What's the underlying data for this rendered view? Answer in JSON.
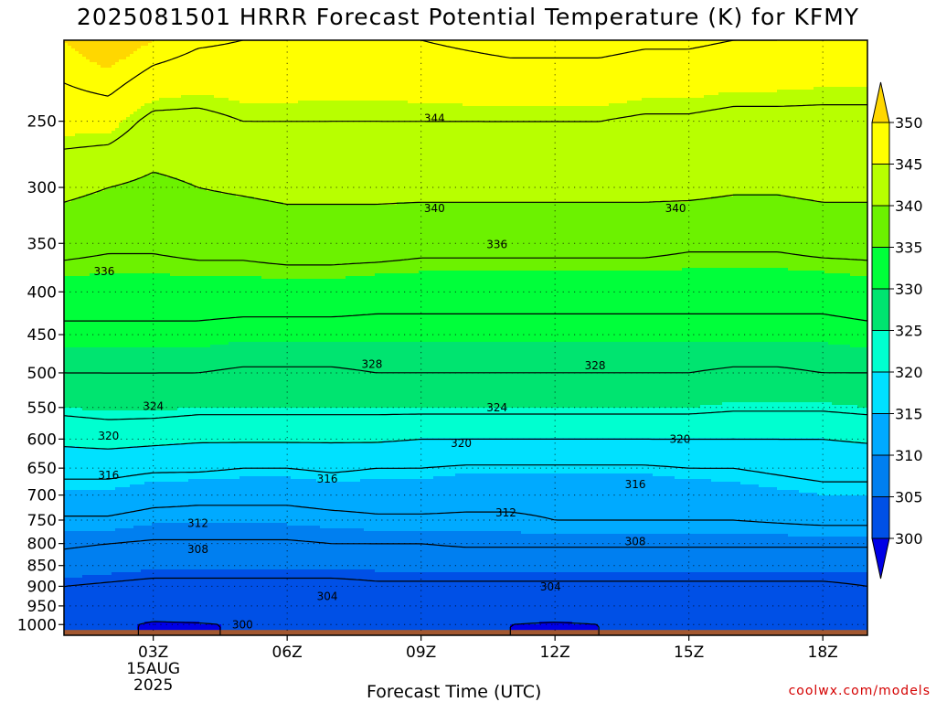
{
  "title": "2025081501 HRRR Forecast Potential Temperature (K) for KFMY",
  "watermark": "coolwx.com/models",
  "chart_data": {
    "type": "heatmap",
    "title": "2025081501 HRRR Forecast Potential Temperature (K) for KFMY",
    "xlabel": "Forecast Time (UTC)",
    "ylabel": "",
    "x_ticks": [
      {
        "t": 2,
        "label": "03Z",
        "sub": [
          "15AUG",
          "2025"
        ]
      },
      {
        "t": 5,
        "label": "06Z"
      },
      {
        "t": 8,
        "label": "09Z"
      },
      {
        "t": 11,
        "label": "12Z"
      },
      {
        "t": 14,
        "label": "15Z"
      },
      {
        "t": 17,
        "label": "18Z"
      }
    ],
    "xlim": [
      0,
      18
    ],
    "y_ticks": [
      250,
      300,
      350,
      400,
      450,
      500,
      550,
      600,
      650,
      700,
      750,
      800,
      850,
      900,
      950,
      1000
    ],
    "y_scale": "log",
    "ylim": [
      1030,
      200
    ],
    "ground_pressure": 1015,
    "grid": true,
    "colorbar": {
      "levels": [
        300,
        305,
        310,
        315,
        320,
        325,
        330,
        335,
        340,
        345,
        350
      ],
      "colors": [
        "#0000e6",
        "#0050e6",
        "#007ff0",
        "#00aaff",
        "#00e1ff",
        "#00ffd0",
        "#00e470",
        "#00ff3a",
        "#6cf200",
        "#b8ff00",
        "#ffff00",
        "#ffd700"
      ],
      "under_color": "#0000e6",
      "over_color": "#ffd700",
      "ground_color": "#a35830"
    },
    "grid_data": {
      "times": [
        0,
        1,
        2,
        3,
        4,
        5,
        6,
        7,
        8,
        9,
        10,
        11,
        12,
        13,
        14,
        15,
        16,
        17,
        18
      ],
      "pressures": [
        200,
        250,
        300,
        350,
        400,
        450,
        500,
        550,
        600,
        650,
        700,
        750,
        800,
        850,
        900,
        950,
        1000
      ],
      "theta": [
        [
          350,
          352,
          350,
          348.5,
          348,
          348,
          347.5,
          347.5,
          348,
          348.5,
          349,
          349,
          349,
          348.5,
          348.5,
          348,
          348,
          347.5,
          347.5
        ],
        [
          346,
          346,
          343,
          343,
          344,
          344,
          344,
          344,
          344,
          344,
          344,
          344,
          344,
          343.5,
          343.5,
          343,
          343,
          343,
          343
        ],
        [
          341,
          340,
          339,
          340,
          340.5,
          341,
          341,
          341,
          341,
          341,
          341,
          341,
          341,
          341,
          341,
          340.5,
          340.5,
          341,
          341
        ],
        [
          337,
          336.5,
          336.5,
          337,
          337,
          337.5,
          337.5,
          337.5,
          337,
          337,
          337,
          337,
          337,
          337,
          336.5,
          336.5,
          336.5,
          337,
          337
        ],
        [
          334,
          334,
          334,
          334,
          334,
          334,
          334,
          333.5,
          333.5,
          333.5,
          333.5,
          333.5,
          333.5,
          333.5,
          333.5,
          333.5,
          333.5,
          333.5,
          334
        ],
        [
          331,
          331,
          331,
          331,
          330.5,
          330.5,
          330.5,
          330.5,
          330.5,
          330.5,
          330.5,
          330.5,
          330.5,
          330.5,
          330.5,
          330.5,
          330.5,
          330.5,
          331
        ],
        [
          328,
          328,
          328,
          328,
          327.5,
          327.5,
          327.5,
          328,
          328,
          328,
          328,
          328,
          328,
          328,
          328,
          327.5,
          327.5,
          328,
          328
        ],
        [
          325,
          325.5,
          325.5,
          325,
          325,
          325,
          325,
          325,
          325,
          325,
          325,
          325,
          325,
          325,
          325,
          324.5,
          324.5,
          324.5,
          325
        ],
        [
          321,
          321.5,
          321,
          320.5,
          320.5,
          320.5,
          320.5,
          320.5,
          320,
          320,
          320,
          320,
          320,
          320,
          320,
          320,
          320,
          320,
          320.5
        ],
        [
          317,
          317,
          316.5,
          316.5,
          316,
          316,
          316.5,
          316,
          316,
          315.5,
          315.5,
          315.5,
          315.5,
          315.5,
          316,
          316,
          316.5,
          317,
          317
        ],
        [
          314.5,
          314.5,
          313.5,
          313,
          313,
          313,
          313.5,
          313.5,
          313.5,
          313,
          313,
          313,
          313,
          313,
          313.5,
          314,
          314.5,
          315,
          315
        ],
        [
          311.5,
          311.5,
          310.5,
          310.5,
          310.5,
          310.5,
          311,
          311.5,
          311.5,
          311.5,
          311.5,
          312,
          312,
          312,
          312,
          312,
          312.5,
          313,
          313
        ],
        [
          308.5,
          308,
          307.5,
          307.5,
          307.5,
          307.5,
          308,
          308,
          308,
          308.5,
          308.5,
          308.5,
          308.5,
          308.5,
          308.5,
          308.5,
          308.5,
          308.5,
          308.5
        ],
        [
          306.5,
          306,
          305.5,
          305.5,
          305.5,
          305.5,
          305.5,
          305.5,
          305.5,
          305.5,
          305.5,
          305.5,
          305.5,
          305.5,
          305.5,
          305.5,
          305.5,
          305.5,
          305.5
        ],
        [
          304,
          303.5,
          303,
          303,
          303,
          303,
          303,
          303.5,
          303.5,
          303.5,
          303.5,
          303.5,
          303.5,
          303.5,
          303.5,
          303.5,
          303.5,
          303.5,
          304
        ],
        [
          303,
          302.5,
          302,
          302,
          302,
          302.5,
          302.5,
          302.5,
          302,
          302,
          302,
          302,
          302,
          302.5,
          302.5,
          302.5,
          302.5,
          302.5,
          303
        ],
        [
          301.5,
          300.8,
          299.6,
          299.8,
          300.2,
          300.8,
          301,
          301,
          300.5,
          300.3,
          300,
          299.7,
          300,
          300.8,
          301.2,
          301.5,
          301.5,
          301.5,
          302
        ]
      ]
    },
    "contour_interval": 4,
    "contour_labels": [
      {
        "t": 8.3,
        "p": 248,
        "label": "344"
      },
      {
        "t": 8.3,
        "p": 318,
        "label": "340"
      },
      {
        "t": 13.7,
        "p": 318,
        "label": "340"
      },
      {
        "t": 9.7,
        "p": 351,
        "label": "336"
      },
      {
        "t": 0.9,
        "p": 378,
        "label": "336"
      },
      {
        "t": 6.9,
        "p": 488,
        "label": "328"
      },
      {
        "t": 11.9,
        "p": 490,
        "label": "328"
      },
      {
        "t": 2.0,
        "p": 548,
        "label": "324"
      },
      {
        "t": 9.7,
        "p": 550,
        "label": "324"
      },
      {
        "t": 1.0,
        "p": 595,
        "label": "320"
      },
      {
        "t": 8.9,
        "p": 607,
        "label": "320"
      },
      {
        "t": 13.8,
        "p": 600,
        "label": "320"
      },
      {
        "t": 1.0,
        "p": 663,
        "label": "316"
      },
      {
        "t": 5.9,
        "p": 670,
        "label": "316"
      },
      {
        "t": 12.8,
        "p": 680,
        "label": "316"
      },
      {
        "t": 3.0,
        "p": 757,
        "label": "312"
      },
      {
        "t": 9.9,
        "p": 735,
        "label": "312"
      },
      {
        "t": 3.0,
        "p": 813,
        "label": "308"
      },
      {
        "t": 12.8,
        "p": 796,
        "label": "308"
      },
      {
        "t": 5.9,
        "p": 926,
        "label": "304"
      },
      {
        "t": 10.9,
        "p": 901,
        "label": "304"
      },
      {
        "t": 4.0,
        "p": 1000,
        "label": "300"
      }
    ]
  }
}
